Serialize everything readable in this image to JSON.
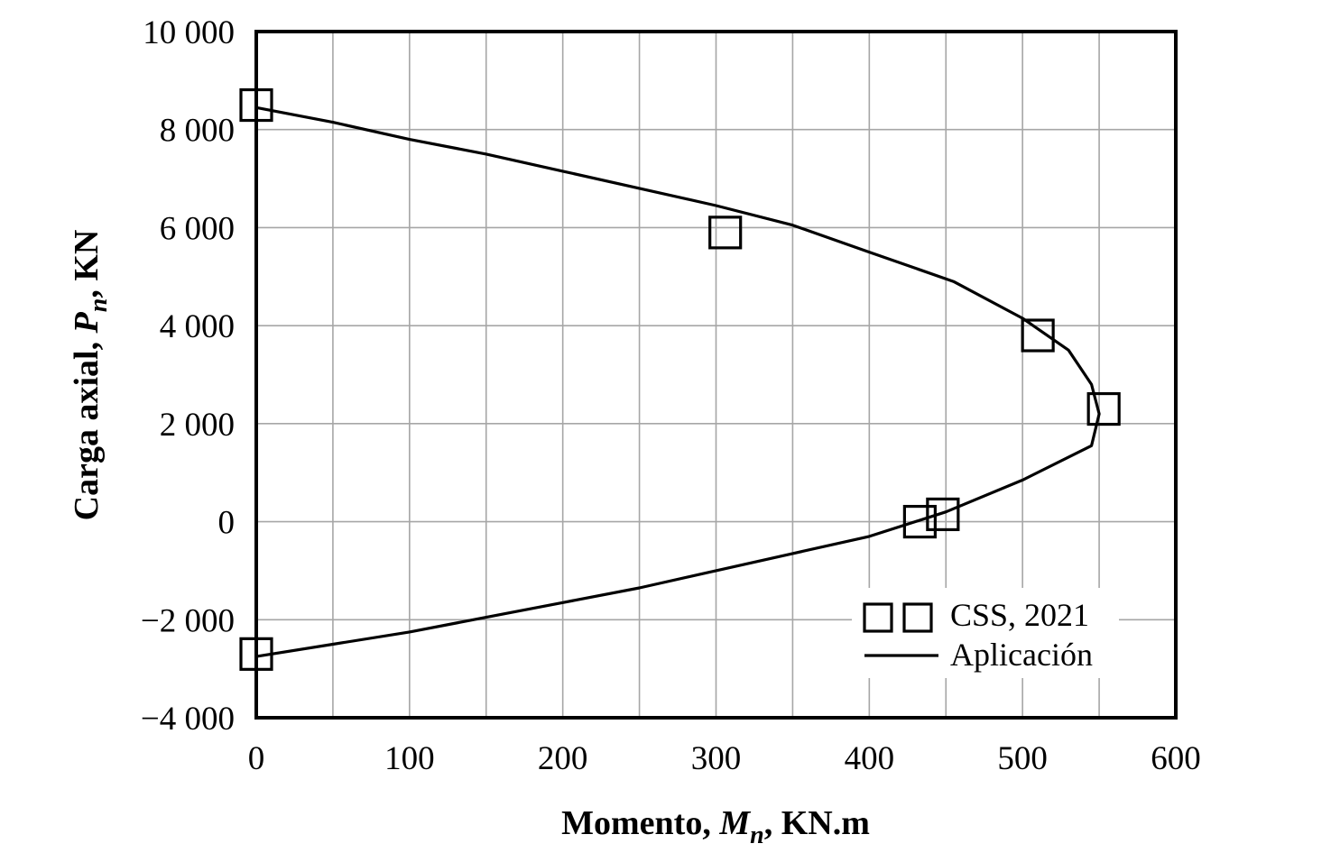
{
  "chart_data": {
    "type": "scatter",
    "xlabel_parts": {
      "pre": "Momento, ",
      "sym": "M",
      "sub": "n",
      "post": ", KN.m"
    },
    "ylabel_parts": {
      "pre": "Carga axial, ",
      "sym": "P",
      "sub": "n",
      "post": ", KN"
    },
    "xlim": [
      0,
      600
    ],
    "ylim": [
      -4000,
      10000
    ],
    "x_ticks": [
      0,
      100,
      200,
      300,
      400,
      500,
      600
    ],
    "x_tick_labels": [
      "0",
      "100",
      "200",
      "300",
      "400",
      "500",
      "600"
    ],
    "y_ticks": [
      -4000,
      -2000,
      0,
      2000,
      4000,
      6000,
      8000,
      10000
    ],
    "y_tick_labels": [
      "−4 000",
      "−2 000",
      "0",
      "2 000",
      "4 000",
      "6 000",
      "8 000",
      "10 000"
    ],
    "grid": true,
    "grid_x_step": 50,
    "grid_y_step": 2000,
    "legend_position": "bottom-right",
    "series": [
      {
        "name": "CSS, 2021",
        "type": "scatter",
        "marker": "square",
        "points": [
          [
            0,
            8500
          ],
          [
            306,
            5900
          ],
          [
            510,
            3800
          ],
          [
            553,
            2300
          ],
          [
            433,
            0
          ],
          [
            448,
            150
          ],
          [
            0,
            -2700
          ]
        ]
      },
      {
        "name": "Aplicación",
        "type": "line",
        "points": [
          [
            0,
            8450
          ],
          [
            50,
            8150
          ],
          [
            100,
            7800
          ],
          [
            150,
            7500
          ],
          [
            200,
            7150
          ],
          [
            250,
            6800
          ],
          [
            300,
            6450
          ],
          [
            350,
            6050
          ],
          [
            400,
            5500
          ],
          [
            455,
            4900
          ],
          [
            500,
            4150
          ],
          [
            530,
            3500
          ],
          [
            545,
            2800
          ],
          [
            550,
            2200
          ],
          [
            545,
            1550
          ],
          [
            500,
            850
          ],
          [
            450,
            200
          ],
          [
            400,
            -300
          ],
          [
            350,
            -650
          ],
          [
            300,
            -1000
          ],
          [
            250,
            -1350
          ],
          [
            200,
            -1650
          ],
          [
            150,
            -1950
          ],
          [
            100,
            -2250
          ],
          [
            50,
            -2500
          ],
          [
            0,
            -2750
          ]
        ]
      }
    ]
  }
}
